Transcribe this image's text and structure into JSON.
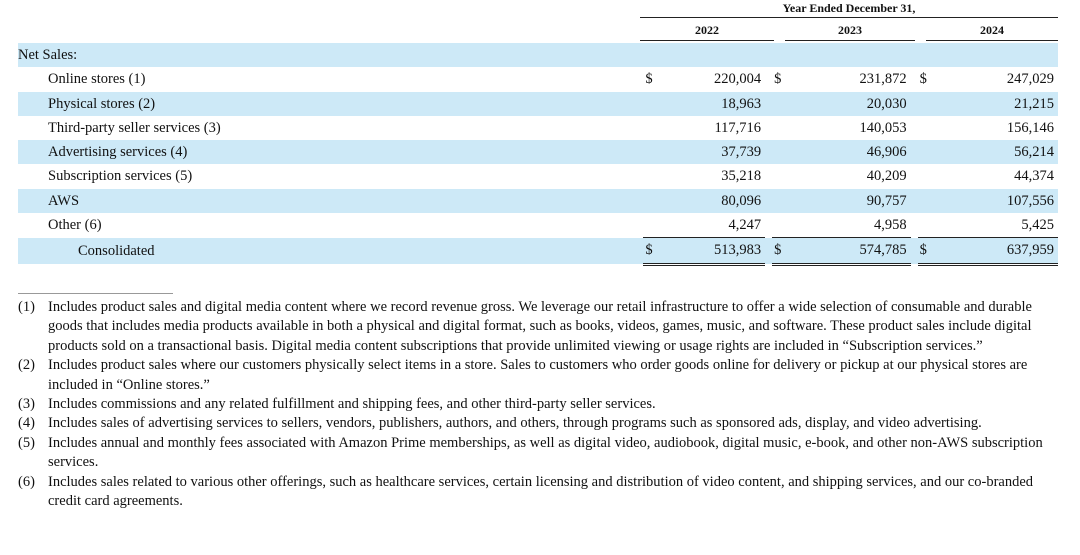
{
  "header": {
    "period": "Year Ended December 31,",
    "years": [
      "2022",
      "2023",
      "2024"
    ]
  },
  "table": {
    "section_label": "Net Sales:",
    "currency_symbol": "$",
    "rows": [
      {
        "label": "Online stores (1)",
        "values": [
          "220,004",
          "231,872",
          "247,029"
        ]
      },
      {
        "label": "Physical stores (2)",
        "values": [
          "18,963",
          "20,030",
          "21,215"
        ]
      },
      {
        "label": "Third-party seller services (3)",
        "values": [
          "117,716",
          "140,053",
          "156,146"
        ]
      },
      {
        "label": "Advertising services (4)",
        "values": [
          "37,739",
          "46,906",
          "56,214"
        ]
      },
      {
        "label": "Subscription services (5)",
        "values": [
          "35,218",
          "40,209",
          "44,374"
        ]
      },
      {
        "label": "AWS",
        "values": [
          "80,096",
          "90,757",
          "107,556"
        ]
      },
      {
        "label": "Other (6)",
        "values": [
          "4,247",
          "4,958",
          "5,425"
        ]
      }
    ],
    "total": {
      "label": "Consolidated",
      "values": [
        "513,983",
        "574,785",
        "637,959"
      ]
    }
  },
  "footnotes": [
    {
      "num": "(1)",
      "text": "Includes product sales and digital media content where we record revenue gross. We leverage our retail infrastructure to offer a wide selection of consumable and durable goods that includes media products available in both a physical and digital format, such as books, videos, games, music, and software. These product sales include digital products sold on a transactional basis. Digital media content subscriptions that provide unlimited viewing or usage rights are included in “Subscription services.”"
    },
    {
      "num": "(2)",
      "text": "Includes product sales where our customers physically select items in a store. Sales to customers who order goods online for delivery or pickup at our physical stores are included in “Online stores.”"
    },
    {
      "num": "(3)",
      "text": "Includes commissions and any related fulfillment and shipping fees, and other third-party seller services."
    },
    {
      "num": "(4)",
      "text": "Includes sales of advertising services to sellers, vendors, publishers, authors, and others, through programs such as sponsored ads, display, and video advertising."
    },
    {
      "num": "(5)",
      "text": "Includes annual and monthly fees associated with Amazon Prime memberships, as well as digital video, audiobook, digital music, e-book, and other non-AWS subscription services."
    },
    {
      "num": "(6)",
      "text": "Includes sales related to various other offerings, such as healthcare services, certain licensing and distribution of video content, and shipping services, and our co-branded credit card agreements."
    }
  ]
}
